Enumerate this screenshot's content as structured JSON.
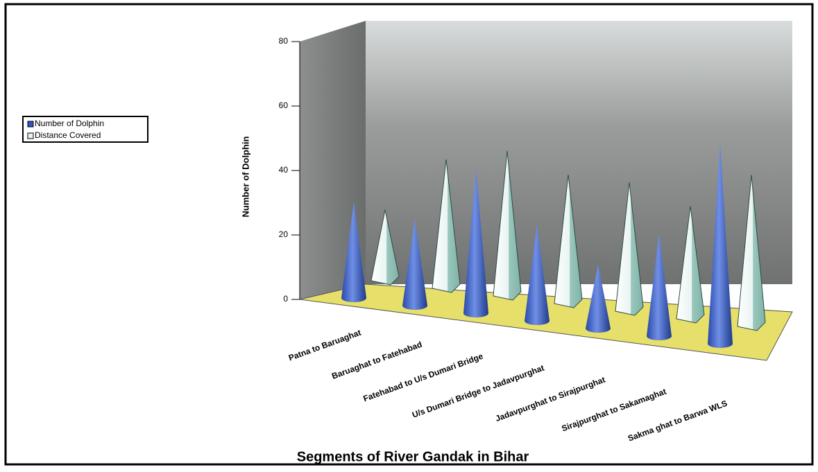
{
  "chart_data": {
    "type": "3d-cone-pyramid",
    "y_label": "Number of Dolphin",
    "x_label": "Segments of River Gandak in Bihar",
    "categories": [
      "Patna to Baruaghat",
      "Baruaghat to Fatehabad",
      "Fatehabad to U/s Dumari Bridge",
      "U/s Dumari Bridge to Jadavpurghat",
      "Jadavpurghat to Sirajpurghat",
      "Sirajpurghat to Sakamaghat",
      "Sakma ghat to Barwa WLS"
    ],
    "series": [
      {
        "name": "Number of Dolphin",
        "color": "#3355bb",
        "values": [
          30,
          27,
          45,
          30,
          20,
          32,
          62
        ]
      },
      {
        "name": "Distance Covered",
        "color": "#e8f4f2",
        "values": [
          22,
          40,
          45,
          40,
          40,
          35,
          47
        ]
      }
    ],
    "ylim": [
      0,
      80
    ],
    "yticks": [
      0,
      20,
      40,
      60,
      80
    ]
  }
}
